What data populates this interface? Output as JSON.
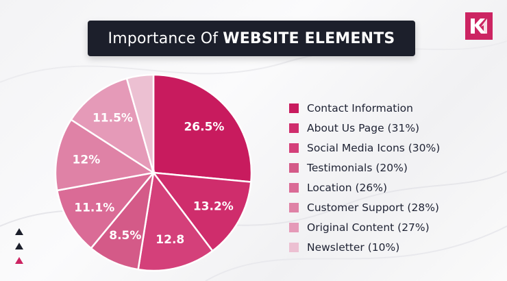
{
  "title": {
    "light": "Importance Of",
    "bold": "WEBSITE ELEMENTS"
  },
  "logo_icon": "km-logo-icon",
  "chart_data": {
    "type": "pie",
    "title": "Importance Of WEBSITE ELEMENTS",
    "slices": [
      {
        "label": "26.5%",
        "value": 26.5,
        "color": "#c81b5e"
      },
      {
        "label": "13.2%",
        "value": 13.2,
        "color": "#cf2d6c"
      },
      {
        "label": "12.8",
        "value": 12.8,
        "color": "#d4407a"
      },
      {
        "label": "8.5%",
        "value": 8.5,
        "color": "#d45a88"
      },
      {
        "label": "11.1%",
        "value": 11.1,
        "color": "#da6b96"
      },
      {
        "label": "12%",
        "value": 12,
        "color": "#df82a6"
      },
      {
        "label": "11.5%",
        "value": 11.5,
        "color": "#e59ab8"
      },
      {
        "label": "",
        "value": 4.4,
        "color": "#ecc0d2"
      }
    ],
    "legend": [
      {
        "label": "Contact Information",
        "color": "#c81b5e"
      },
      {
        "label": "About Us Page (31%)",
        "color": "#cf2d6c"
      },
      {
        "label": "Social Media Icons (30%)",
        "color": "#d4407a"
      },
      {
        "label": "Testimonials (20%)",
        "color": "#d45a88"
      },
      {
        "label": "Location (26%)",
        "color": "#da6b96"
      },
      {
        "label": "Customer Support (28%)",
        "color": "#df82a6"
      },
      {
        "label": "Original Content (27%)",
        "color": "#e59ab8"
      },
      {
        "label": "Newsletter (10%)",
        "color": "#ecc0d2"
      }
    ],
    "legend_position": "right"
  },
  "decor_triangles": [
    "#1c1f2b",
    "#1c1f2b",
    "#cc2462"
  ]
}
